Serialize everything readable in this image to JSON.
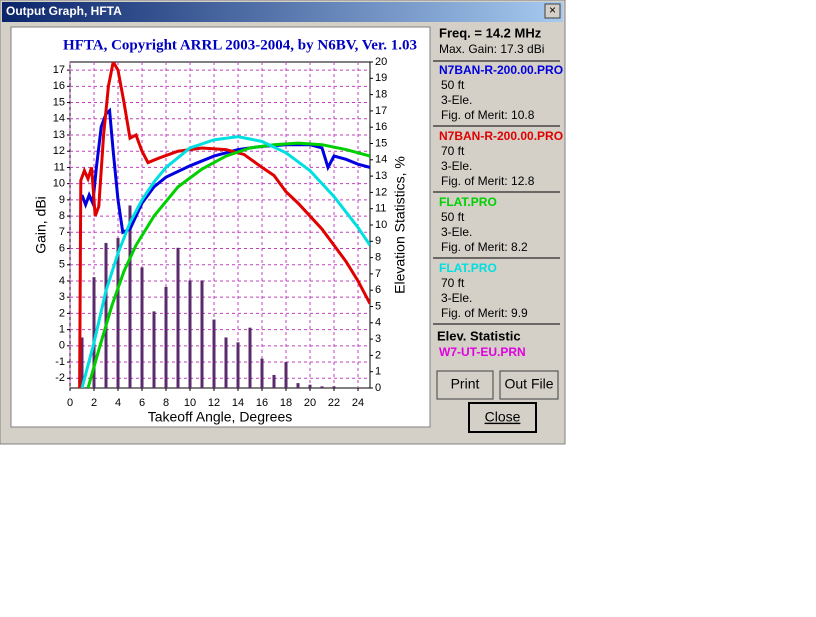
{
  "window": {
    "title": "Output Graph, HFTA",
    "close_glyph": "×",
    "freq": "Freq. = 14.2 MHz",
    "max_gain": "Max. Gain: 17.3 dBi",
    "stat_heading": "Elev. Statistic",
    "buttons": [
      "Print",
      "Out File",
      "Close"
    ]
  },
  "chart_data": {
    "type": "line",
    "title": "HFTA, Copyright ARRL 2003-2004, by N6BV, Ver. 1.03",
    "x_label": "Takeoff Angle, Degrees",
    "y_label": "Gain, dBi",
    "y2_label": "Elevation Statistics, %",
    "xlim": [
      0,
      25
    ],
    "xticks": [
      0,
      2,
      4,
      6,
      8,
      10,
      12,
      14,
      16,
      18,
      20,
      22,
      24
    ],
    "ylim": [
      -2.6,
      17.5
    ],
    "yticks": [
      -2,
      -1,
      0,
      1,
      2,
      3,
      4,
      5,
      6,
      7,
      8,
      9,
      10,
      11,
      12,
      13,
      14,
      15,
      16,
      17
    ],
    "y2lim": [
      0,
      20
    ],
    "y2ticks": [
      0,
      1,
      2,
      3,
      4,
      5,
      6,
      7,
      8,
      9,
      10,
      11,
      12,
      13,
      14,
      15,
      16,
      17,
      18,
      19,
      20
    ],
    "grid": true,
    "grid_color": "#c040c0",
    "series": [
      {
        "name": "N7BAN-R-200.00.PRO",
        "color": "#0000e0",
        "height": "50 ft",
        "elements": "3-Ele.",
        "merit": "Fig. of Merit:  10.8",
        "x": [
          1,
          1.3,
          1.6,
          1.9,
          2.2,
          2.6,
          3,
          3.3,
          3.6,
          4,
          4.4,
          5,
          5.5,
          6,
          7,
          8,
          10,
          12,
          14,
          16,
          18,
          20,
          21,
          21.5,
          22,
          23,
          24,
          25
        ],
        "values": [
          9.3,
          8.7,
          9.3,
          8.8,
          11,
          13.5,
          14.3,
          14.5,
          12,
          9,
          7,
          7.2,
          8,
          8.8,
          9.8,
          10.4,
          11.1,
          11.7,
          12.1,
          12.3,
          12.4,
          12.4,
          12.2,
          11,
          11.7,
          11.5,
          11.2,
          11
        ]
      },
      {
        "name": "N7BAN-R-200.00.PRO",
        "color": "#e00000",
        "height": "70 ft",
        "elements": "3-Ele.",
        "merit": "Fig. of Merit:  12.8",
        "x": [
          0.8,
          0.9,
          1.2,
          1.5,
          1.8,
          2.1,
          2.4,
          2.8,
          3.2,
          3.6,
          4,
          4.5,
          5,
          5.5,
          6,
          6.5,
          7.5,
          9,
          11,
          13,
          14.5,
          16,
          17,
          18,
          19,
          20,
          21,
          22,
          23,
          24,
          25
        ],
        "values": [
          -2.6,
          10.2,
          10.8,
          10.3,
          11,
          8,
          8.6,
          13,
          16,
          17.5,
          17,
          15,
          12.8,
          13,
          12,
          11.3,
          11.6,
          12,
          12.2,
          12.1,
          11.8,
          11,
          10.5,
          9.5,
          8.8,
          8,
          7.2,
          6.2,
          5.2,
          4,
          2.6
        ]
      },
      {
        "name": "FLAT.PRO",
        "color": "#00d000",
        "height": "50 ft",
        "elements": "3-Ele.",
        "merit": "Fig. of Merit:  8.2",
        "x": [
          1.5,
          2.5,
          3.5,
          4.5,
          5.5,
          7,
          9,
          11,
          13,
          15,
          17,
          19,
          21,
          23,
          25
        ],
        "values": [
          -2.6,
          0,
          2.5,
          4.6,
          6.2,
          8,
          9.8,
          10.9,
          11.7,
          12.2,
          12.4,
          12.5,
          12.4,
          12.1,
          11.7
        ]
      },
      {
        "name": "FLAT.PRO",
        "color": "#00e0e0",
        "height": "70 ft",
        "elements": "3-Ele.",
        "merit": "Fig. of Merit:  9.9",
        "x": [
          1,
          2,
          3,
          4,
          5,
          6,
          7,
          8,
          10,
          12,
          14,
          16,
          18,
          20,
          22,
          24,
          25
        ],
        "values": [
          -2.6,
          0.2,
          3.4,
          5.7,
          7.6,
          9,
          10.1,
          11,
          12.2,
          12.7,
          12.9,
          12.6,
          11.9,
          10.8,
          9.2,
          7.3,
          6.2
        ]
      }
    ],
    "bars": {
      "name": "W7-UT-EU.PRN",
      "color": "#5a2a6a",
      "label_color": "#e000e0",
      "axis": "y2",
      "x": [
        1,
        2,
        3,
        4,
        5,
        6,
        7,
        8,
        9,
        10,
        11,
        12,
        13,
        14,
        15,
        16,
        17,
        18,
        19,
        20,
        21,
        22
      ],
      "values": [
        3.1,
        6.8,
        8.9,
        9.2,
        11.2,
        7.4,
        4.7,
        6.2,
        8.6,
        6.6,
        6.6,
        4.2,
        3.1,
        2.8,
        3.7,
        1.8,
        0.8,
        1.6,
        0.3,
        0.2,
        0.1,
        0.1
      ]
    }
  }
}
